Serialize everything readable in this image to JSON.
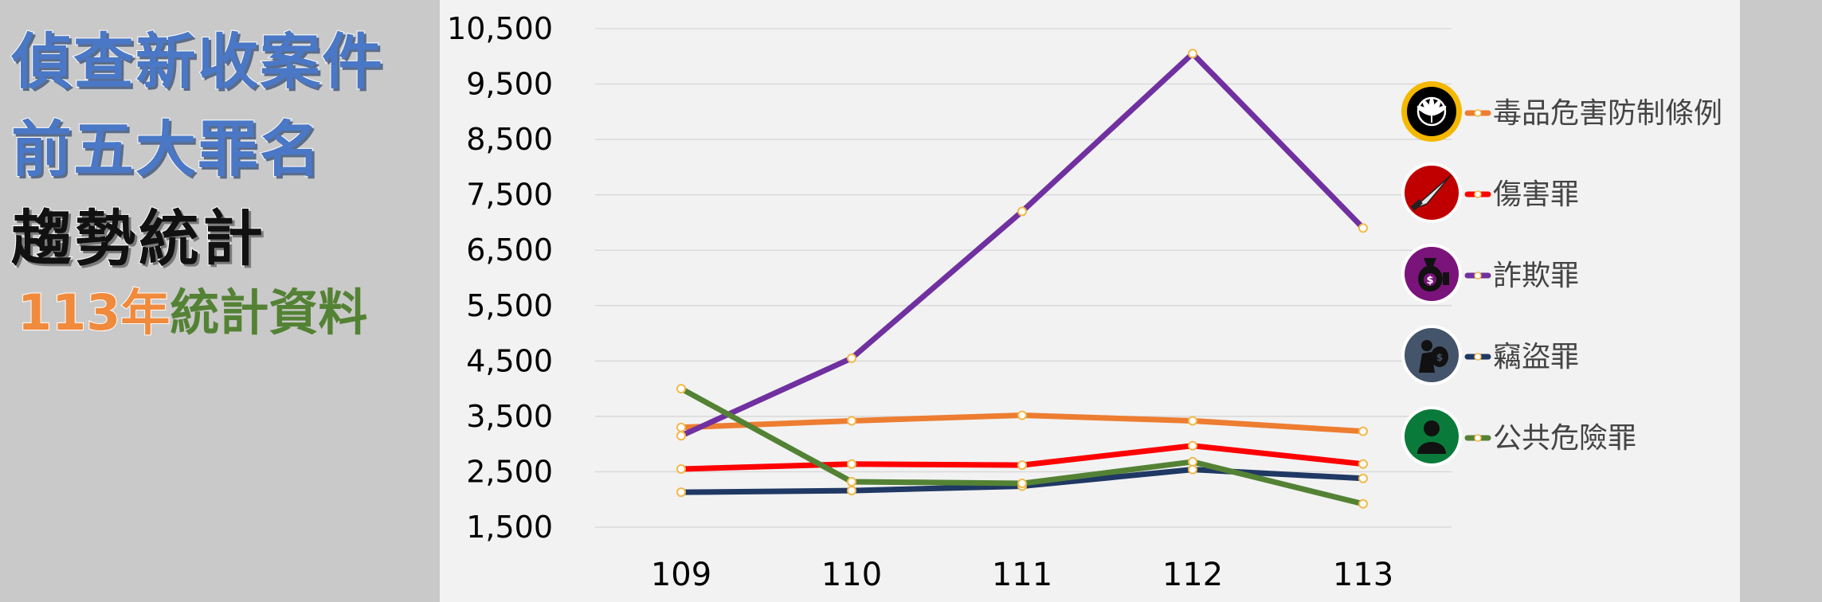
{
  "title": {
    "line1": "偵查新收案件",
    "line2": "前五大罪名",
    "line3": "趨勢統計",
    "subtitle_year": "113年",
    "subtitle_rest": "統計資料"
  },
  "chart_data": {
    "type": "line",
    "x": [
      "109",
      "110",
      "111",
      "112",
      "113"
    ],
    "ylim": [
      1500,
      10500
    ],
    "yticks": [
      "1,500",
      "2,500",
      "3,500",
      "4,500",
      "5,500",
      "6,500",
      "7,500",
      "8,500",
      "9,500",
      "10,500"
    ],
    "ytick_values": [
      1500,
      2500,
      3500,
      4500,
      5500,
      6500,
      7500,
      8500,
      9500,
      10500
    ],
    "grid": true,
    "legend_position": "right",
    "series": [
      {
        "name": "毒品危害防制條例",
        "color": "#ed7d31",
        "icon": "cannabis-leaf-icon",
        "icon_bg": "#000000",
        "icon_ring": "#f5b800",
        "values": [
          3300,
          3420,
          3520,
          3420,
          3230
        ]
      },
      {
        "name": "傷害罪",
        "color": "#ff0000",
        "icon": "knife-icon",
        "icon_bg": "#c00000",
        "icon_ring": "#ffffff",
        "values": [
          2550,
          2640,
          2620,
          2970,
          2640
        ]
      },
      {
        "name": "詐欺罪",
        "color": "#7030a0",
        "icon": "money-bag-icon",
        "icon_bg": "#7a137a",
        "icon_ring": "#ffffff",
        "values": [
          3150,
          4550,
          7200,
          10050,
          6900
        ]
      },
      {
        "name": "竊盜罪",
        "color": "#203864",
        "icon": "thief-icon",
        "icon_bg": "#44546a",
        "icon_ring": "#ffffff",
        "values": [
          2130,
          2160,
          2240,
          2540,
          2380
        ]
      },
      {
        "name": "公共危險罪",
        "color": "#548235",
        "icon": "person-icon",
        "icon_bg": "#0a7a3a",
        "icon_ring": "#ffffff",
        "values": [
          4000,
          2320,
          2290,
          2680,
          1920
        ]
      }
    ]
  }
}
